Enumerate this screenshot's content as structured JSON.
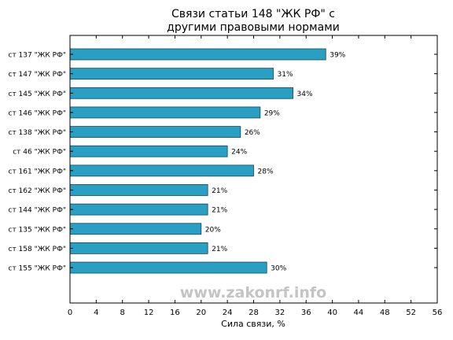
{
  "chart_data": {
    "type": "bar",
    "orientation": "horizontal",
    "title_lines": [
      "Связи статьи 148 \"ЖК РФ\" с",
      "другими правовыми нормами"
    ],
    "xlabel": "Сила связи, %",
    "ylabel": "",
    "xlim": [
      0,
      56
    ],
    "xticks": [
      0,
      4,
      8,
      12,
      16,
      20,
      24,
      28,
      32,
      36,
      40,
      44,
      48,
      52,
      56
    ],
    "grid": false,
    "categories": [
      "ст 137 \"ЖК РФ\"",
      "ст 147 \"ЖК РФ\"",
      "ст 145 \"ЖК РФ\"",
      "ст 146 \"ЖК РФ\"",
      "ст 138 \"ЖК РФ\"",
      "ст 46 \"ЖК РФ\"",
      "ст 161 \"ЖК РФ\"",
      "ст 162 \"ЖК РФ\"",
      "ст 144 \"ЖК РФ\"",
      "ст 135 \"ЖК РФ\"",
      "ст 158 \"ЖК РФ\"",
      "ст 155 \"ЖК РФ\""
    ],
    "values": [
      39,
      31,
      34,
      29,
      26,
      24,
      28,
      21,
      21,
      20,
      21,
      30
    ],
    "value_labels": [
      "39%",
      "31%",
      "34%",
      "29%",
      "26%",
      "24%",
      "28%",
      "21%",
      "21%",
      "20%",
      "21%",
      "30%"
    ],
    "bar_color": "#2a9fc4",
    "bar_edge_color": "#0f4a5a"
  },
  "watermark": "www.zakonrf.info"
}
